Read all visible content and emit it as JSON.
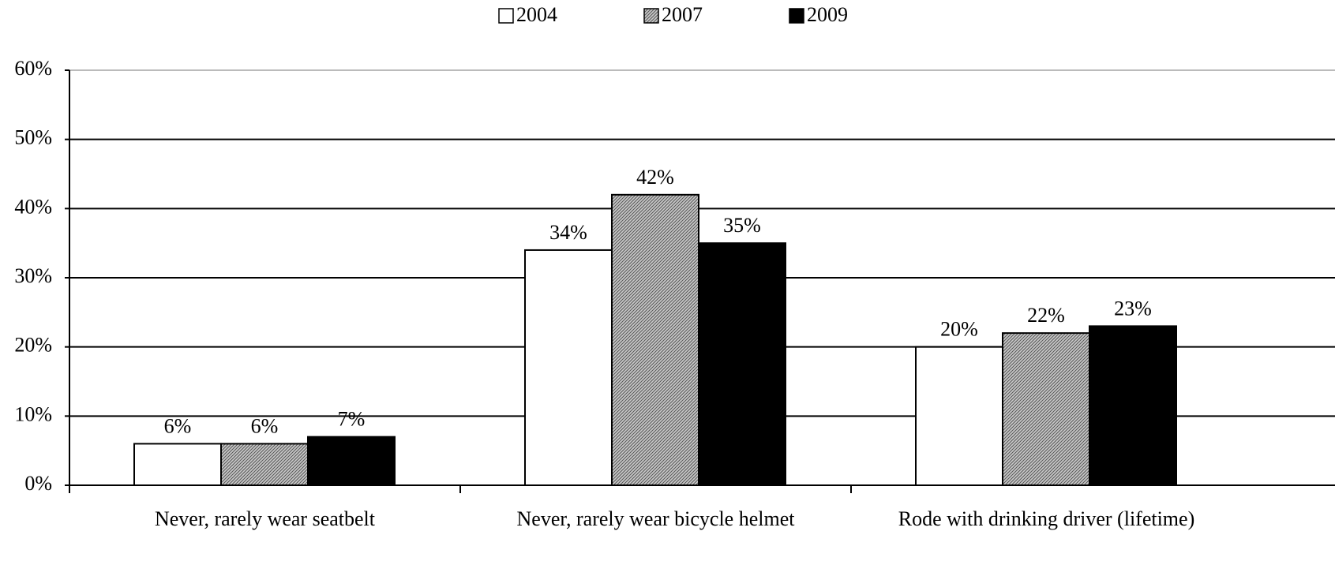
{
  "chart_data": {
    "type": "bar",
    "categories": [
      "Never, rarely wear seatbelt",
      "Never, rarely wear bicycle helmet",
      "Rode with drinking driver (lifetime)"
    ],
    "series": [
      {
        "name": "2004",
        "color": "#ffffff",
        "values": [
          6,
          34,
          20
        ],
        "value_labels": [
          "6%",
          "34%",
          "20%"
        ]
      },
      {
        "name": "2007",
        "color": "#a8a8a8",
        "hatch": true,
        "values": [
          6,
          42,
          22
        ],
        "value_labels": [
          "6%",
          "42%",
          "22%"
        ]
      },
      {
        "name": "2009",
        "color": "#000000",
        "values": [
          7,
          35,
          23
        ],
        "value_labels": [
          "7%",
          "35%",
          "23%"
        ]
      }
    ],
    "ylim": [
      0,
      60
    ],
    "yticks": [
      {
        "value": 0,
        "label": "0%"
      },
      {
        "value": 10,
        "label": "10%"
      },
      {
        "value": 20,
        "label": "20%"
      },
      {
        "value": 30,
        "label": "30%"
      },
      {
        "value": 40,
        "label": "40%"
      },
      {
        "value": 50,
        "label": "50%"
      },
      {
        "value": 60,
        "label": "60%"
      }
    ],
    "grid": true,
    "legend": "top"
  }
}
